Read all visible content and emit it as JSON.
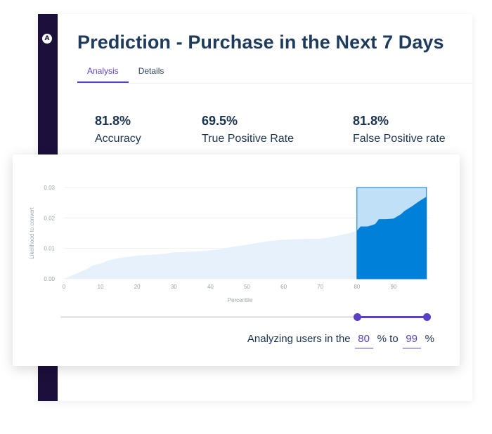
{
  "page": {
    "title": "Prediction - Purchase in the Next 7 Days",
    "tabs": [
      {
        "label": "Analysis",
        "active": true
      },
      {
        "label": "Details",
        "active": false
      }
    ]
  },
  "metrics": [
    {
      "value": "81.8%",
      "label": "Accuracy"
    },
    {
      "value": "69.5%",
      "label": "True Positive Rate"
    },
    {
      "value": "81.8%",
      "label": "False Positive rate"
    }
  ],
  "chart_data": {
    "type": "area",
    "xlabel": "Percentile",
    "ylabel": "Likelihood to convert",
    "xlim": [
      0,
      100
    ],
    "ylim": [
      0,
      0.03
    ],
    "x_ticks": [
      0,
      10,
      20,
      30,
      40,
      50,
      60,
      70,
      80,
      90
    ],
    "y_ticks": [
      "0.00",
      "0.01",
      "0.02",
      "0.03"
    ],
    "grid": true,
    "x": [
      0,
      3,
      6,
      8,
      10,
      12,
      15,
      18,
      20,
      22,
      25,
      28,
      30,
      33,
      36,
      39,
      40,
      43,
      46,
      50,
      53,
      56,
      60,
      63,
      66,
      70,
      72,
      74,
      76,
      78,
      80,
      81,
      83,
      85,
      86,
      88,
      90,
      92,
      93,
      95,
      97,
      99
    ],
    "values": [
      0,
      0.0015,
      0.003,
      0.0045,
      0.005,
      0.006,
      0.0068,
      0.0073,
      0.0076,
      0.0078,
      0.008,
      0.0083,
      0.0087,
      0.0088,
      0.009,
      0.0092,
      0.0094,
      0.0098,
      0.0105,
      0.0112,
      0.0118,
      0.0124,
      0.0128,
      0.013,
      0.0131,
      0.0132,
      0.0135,
      0.014,
      0.0145,
      0.015,
      0.0158,
      0.0172,
      0.0172,
      0.018,
      0.0196,
      0.0196,
      0.0198,
      0.0212,
      0.0223,
      0.0238,
      0.0255,
      0.027
    ],
    "selection": {
      "from": 80,
      "to": 99
    }
  },
  "selection_control": {
    "prefix": "Analyzing users in the",
    "from_value": "80",
    "middle": "% to",
    "to_value": "99",
    "suffix": "%"
  },
  "colors": {
    "sidebar": "#1c0f3b",
    "accent": "#5b3fc4",
    "area_light": "#e6f1fb",
    "area_selected": "#0080d9",
    "selection_box": "#bfe0f7",
    "selection_border": "#0a78c8"
  },
  "icons": {
    "logo": "amplitude-logo-icon"
  }
}
